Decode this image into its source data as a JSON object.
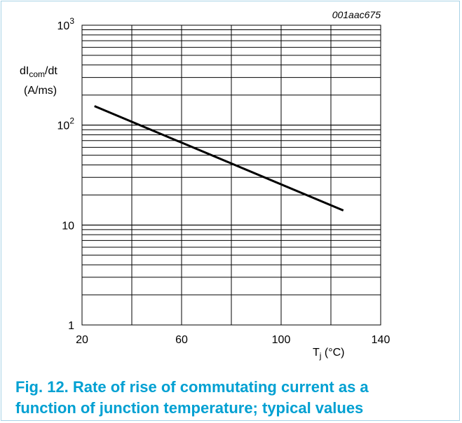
{
  "figure": {
    "code": "001aac675",
    "caption_line1": "Fig. 12. Rate of rise of commutating current as a",
    "caption_line2": "function of junction temperature; typical values"
  },
  "chart_data": {
    "type": "line",
    "yscale": "log",
    "grid": true,
    "xlim": [
      20,
      140
    ],
    "ylim": [
      1,
      1000
    ],
    "x_ticks": [
      20,
      60,
      100,
      140
    ],
    "y_tick_labels": [
      {
        "value": 1000,
        "base": "10",
        "sup": "3"
      },
      {
        "value": 100,
        "base": "10",
        "sup": "2"
      },
      {
        "value": 10,
        "base": "10",
        "sup": ""
      },
      {
        "value": 1,
        "base": "1",
        "sup": ""
      }
    ],
    "ylabel": {
      "prefix": "dI",
      "sub": "com",
      "suffix": "/dt",
      "unit": "(A/ms)"
    },
    "xlabel": {
      "prefix": "T",
      "sub": "j",
      "suffix": " (°C)"
    },
    "series": [
      {
        "x": [
          25,
          125
        ],
        "y": [
          155,
          14
        ]
      }
    ],
    "colors": {
      "line": "#000000",
      "grid": "#000000",
      "caption": "#00a0d2"
    }
  }
}
